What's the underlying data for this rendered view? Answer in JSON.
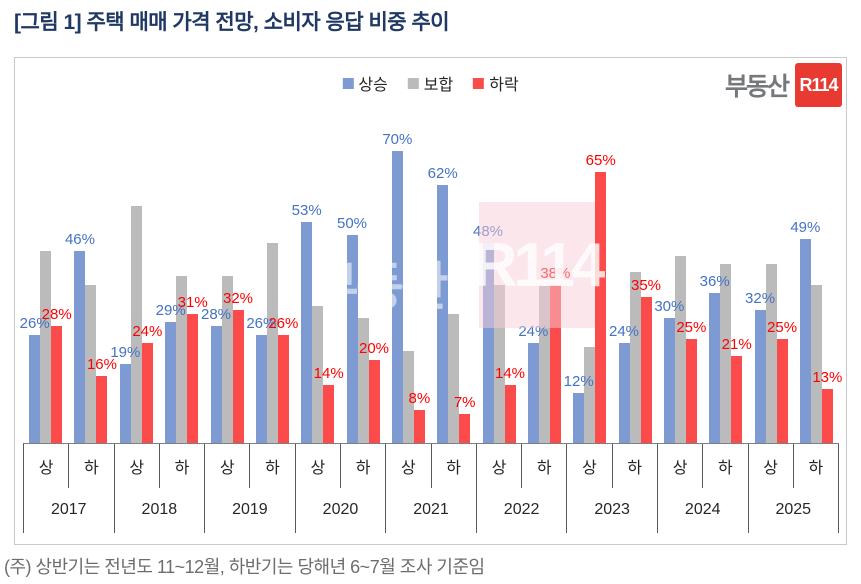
{
  "title": "[그림 1] 주택 매매 가격 전망, 소비자 응답 비중 추이",
  "footnote": "(주) 상반기는 전년도 11~12월, 하반기는 당해년 6~7월 조사 기준임",
  "logo": {
    "text": "부동산",
    "badge": "R114"
  },
  "watermark": {
    "text": "부동산",
    "badge": "R114"
  },
  "colors": {
    "title": "#1F3864",
    "frame_border": "#C9C9C9",
    "axis_line": "#7F7F7F",
    "tick_line": "#595959",
    "rise_bar": "#7D9AD2",
    "flat_bar": "#BBBBBB",
    "fall_bar": "#FB4B4B",
    "rise_label": "#4472C4",
    "fall_label": "#FF0000",
    "logo_red": "#E83A30",
    "footnote_text": "#6D6D6D"
  },
  "chart_data": {
    "type": "bar",
    "title": "주택 매매 가격 전망, 소비자 응답 비중 추이",
    "unit": "%",
    "ylim": [
      0,
      100
    ],
    "grid": false,
    "legend_position": "top-center",
    "years": [
      "2017",
      "2018",
      "2019",
      "2020",
      "2021",
      "2022",
      "2023",
      "2024",
      "2025"
    ],
    "half_labels": [
      "상",
      "하"
    ],
    "categories": [
      "2017 상",
      "2017 하",
      "2018 상",
      "2018 하",
      "2019 상",
      "2019 하",
      "2020 상",
      "2020 하",
      "2021 상",
      "2021 하",
      "2022 상",
      "2022 하",
      "2023 상",
      "2023 하",
      "2024 상",
      "2024 하",
      "2025 상",
      "2025 하"
    ],
    "series": [
      {
        "name": "상승",
        "key": "rise",
        "color": "#7D9AD2",
        "label_color": "#4472C4",
        "labels_shown": true,
        "values": [
          26,
          46,
          19,
          29,
          28,
          26,
          53,
          50,
          70,
          62,
          48,
          24,
          12,
          24,
          30,
          36,
          32,
          49
        ]
      },
      {
        "name": "보합",
        "key": "flat",
        "color": "#BBBBBB",
        "label_color": "#808080",
        "labels_shown": false,
        "values": [
          46,
          38,
          57,
          40,
          40,
          48,
          33,
          30,
          22,
          31,
          38,
          38,
          23,
          41,
          45,
          43,
          43,
          38
        ]
      },
      {
        "name": "하락",
        "key": "fall",
        "color": "#FB4B4B",
        "label_color": "#FF0000",
        "labels_shown": true,
        "values": [
          28,
          16,
          24,
          31,
          32,
          26,
          14,
          20,
          8,
          7,
          14,
          38,
          65,
          35,
          25,
          21,
          25,
          13
        ]
      }
    ]
  }
}
